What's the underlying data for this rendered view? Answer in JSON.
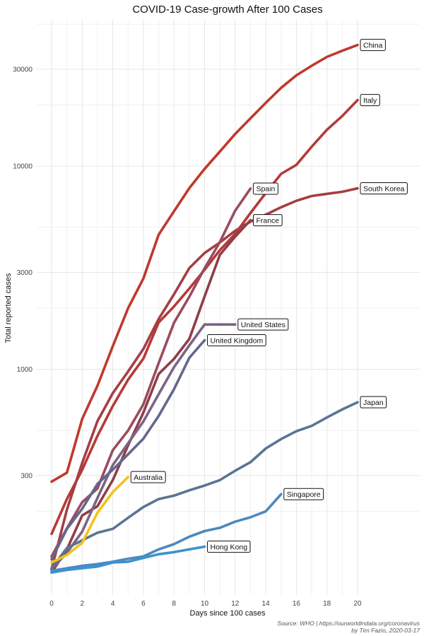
{
  "chart_data": {
    "type": "line",
    "title": "COVID-19 Case-growth After 100 Cases",
    "xlabel": "Days since 100 cases",
    "ylabel": "Total reported cases",
    "xlim": [
      0,
      20
    ],
    "ylim": [
      100,
      55000
    ],
    "yscale": "log",
    "x_ticks": [
      0,
      2,
      4,
      6,
      8,
      10,
      12,
      14,
      16,
      18,
      20
    ],
    "y_ticks": [
      300,
      1000,
      3000,
      10000,
      30000
    ],
    "y_tick_labels": [
      "300",
      "1000",
      "3000",
      "10000",
      "30000"
    ],
    "grid": true,
    "caption_line1": "Source: WHO | https://ourworldindata.org/coronavirus",
    "caption_line2": "by Tim Fazio, 2020-03-17",
    "series": [
      {
        "name": "China",
        "label": "China",
        "color": "#C0392B",
        "values": [
          280,
          310,
          570,
          830,
          1300,
          2000,
          2800,
          4600,
          6000,
          7800,
          9700,
          11800,
          14400,
          17200,
          20500,
          24300,
          28000,
          31200,
          34500,
          37000,
          39500
        ]
      },
      {
        "name": "Italy",
        "label": "Italy",
        "color": "#B53A37",
        "values": [
          155,
          230,
          320,
          470,
          660,
          890,
          1130,
          1700,
          2040,
          2500,
          3090,
          3860,
          4640,
          5880,
          7380,
          9170,
          10150,
          12460,
          15110,
          17660,
          21160
        ]
      },
      {
        "name": "South Korea",
        "label": "South Korea",
        "color": "#A53E44",
        "values": [
          104,
          204,
          346,
          556,
          763,
          977,
          1260,
          1770,
          2340,
          3150,
          3740,
          4210,
          4810,
          5330,
          5770,
          6280,
          6760,
          7130,
          7310,
          7480,
          7780
        ]
      },
      {
        "name": "Spain",
        "label": "Spain",
        "color": "#9A4C5E",
        "values": [
          120,
          165,
          222,
          259,
          400,
          500,
          673,
          1073,
          1695,
          2277,
          3146,
          4231,
          6043,
          7753
        ]
      },
      {
        "name": "France",
        "label": "France",
        "color": "#8F3E48",
        "values": [
          100,
          130,
          191,
          212,
          285,
          423,
          613,
          949,
          1126,
          1412,
          2284,
          3661,
          4499,
          5423
        ]
      },
      {
        "name": "United States",
        "label": "United States",
        "color": "#7B6483",
        "values": [
          104,
          125,
          159,
          233,
          338,
          433,
          554,
          754,
          1025,
          1312,
          1663,
          1663,
          1663
        ]
      },
      {
        "name": "United Kingdom",
        "label": "United Kingdom",
        "color": "#63688C",
        "values": [
          116,
          164,
          206,
          273,
          321,
          382,
          456,
          590,
          798,
          1140,
          1391
        ]
      },
      {
        "name": "Japan",
        "label": "Japan",
        "color": "#5B7395",
        "values": [
          105,
          132,
          144,
          157,
          164,
          186,
          210,
          230,
          239,
          254,
          268,
          285,
          317,
          349,
          408,
          454,
          496,
          527,
          580,
          635,
          689
        ]
      },
      {
        "name": "Australia",
        "label": "Australia",
        "color": "#F2C319",
        "values": [
          112,
          122,
          140,
          197,
          249,
          295
        ]
      },
      {
        "name": "Singapore",
        "label": "Singapore",
        "color": "#4C89C0",
        "values": [
          102,
          105,
          108,
          110,
          113,
          117,
          120,
          130,
          138,
          150,
          160,
          166,
          178,
          187,
          200,
          243
        ]
      },
      {
        "name": "Hong Kong",
        "label": "Hong Kong",
        "color": "#3D92CE",
        "values": [
          100,
          103,
          105,
          107,
          112,
          113,
          118,
          123,
          126,
          130,
          134
        ]
      }
    ]
  }
}
